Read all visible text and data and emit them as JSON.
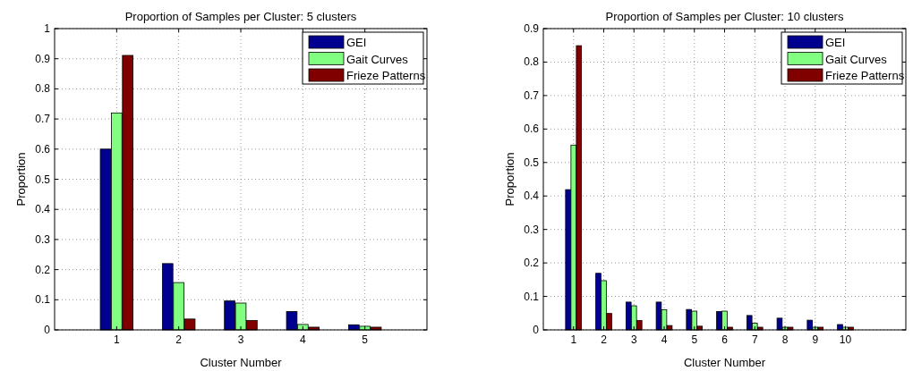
{
  "chart_data": [
    {
      "type": "bar",
      "title": "Proportion of Samples per Cluster: 5 clusters",
      "xlabel": "Cluster Number",
      "ylabel": "Proportion",
      "x": [
        1,
        2,
        3,
        4,
        5
      ],
      "xlim": [
        0,
        6
      ],
      "xticks": [
        1,
        2,
        3,
        4,
        5
      ],
      "ylim": [
        0,
        1
      ],
      "yticks": [
        0,
        0.1,
        0.2,
        0.3,
        0.4,
        0.5,
        0.6,
        0.7,
        0.8,
        0.9,
        1
      ],
      "grid": true,
      "legend": "top right",
      "series": [
        {
          "name": "GEI",
          "color": "#00008f",
          "values": [
            0.6,
            0.22,
            0.096,
            0.061,
            0.017
          ]
        },
        {
          "name": "Gait Curves",
          "color": "#80ff80",
          "values": [
            0.72,
            0.157,
            0.089,
            0.018,
            0.012
          ]
        },
        {
          "name": "Frieze Patterns",
          "color": "#800000",
          "values": [
            0.911,
            0.036,
            0.031,
            0.009,
            0.009
          ]
        }
      ]
    },
    {
      "type": "bar",
      "title": "Proportion of Samples per Cluster: 10 clusters",
      "xlabel": "Cluster Number",
      "ylabel": "Proportion",
      "x": [
        1,
        2,
        3,
        4,
        5,
        6,
        7,
        8,
        9,
        10
      ],
      "xlim": [
        0,
        12
      ],
      "xticks": [
        1,
        2,
        3,
        4,
        5,
        6,
        7,
        8,
        9,
        10
      ],
      "ylim": [
        0,
        0.9
      ],
      "yticks": [
        0,
        0.1,
        0.2,
        0.3,
        0.4,
        0.5,
        0.6,
        0.7,
        0.8,
        0.9
      ],
      "grid": true,
      "legend": "top right",
      "series": [
        {
          "name": "GEI",
          "color": "#00008f",
          "values": [
            0.419,
            0.169,
            0.083,
            0.083,
            0.061,
            0.055,
            0.043,
            0.035,
            0.029,
            0.016
          ]
        },
        {
          "name": "Gait Curves",
          "color": "#80ff80",
          "values": [
            0.552,
            0.147,
            0.072,
            0.06,
            0.056,
            0.056,
            0.02,
            0.008,
            0.008,
            0.008
          ]
        },
        {
          "name": "Frieze Patterns",
          "color": "#800000",
          "values": [
            0.849,
            0.049,
            0.028,
            0.013,
            0.011,
            0.008,
            0.008,
            0.008,
            0.008,
            0.008
          ]
        }
      ]
    }
  ]
}
